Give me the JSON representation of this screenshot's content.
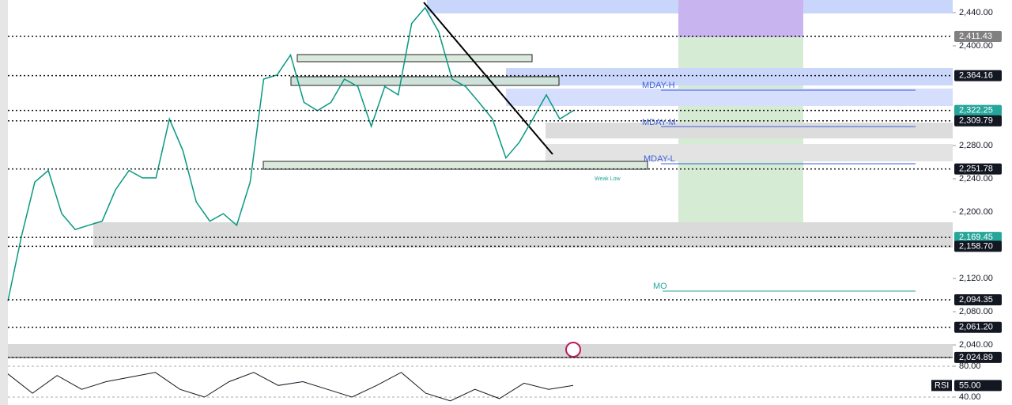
{
  "chart_data": [
    {
      "type": "line",
      "values": [
        2093,
        2170,
        2236,
        2250,
        2198,
        2179,
        2184,
        2189,
        2227,
        2250,
        2241,
        2241,
        2312,
        2274,
        2212,
        2189,
        2198,
        2184,
        2236,
        2360,
        2365,
        2389,
        2332,
        2322,
        2332,
        2360,
        2351,
        2303,
        2351,
        2341,
        2427,
        2446,
        2417,
        2360,
        2351,
        2332,
        2312,
        2265,
        2284,
        2312,
        2341,
        2312,
        2322
      ],
      "color": "#089981",
      "ylim": [
        2024.8,
        2455.2
      ],
      "yticks": [
        {
          "value": 2040,
          "label": "2,040.00"
        },
        {
          "value": 2080,
          "label": "2,080.00"
        },
        {
          "value": 2120,
          "label": "2,120.00"
        },
        {
          "value": 2200,
          "label": "2,200.00"
        },
        {
          "value": 2240,
          "label": "2,240.00"
        },
        {
          "value": 2280,
          "label": "2,280.00"
        },
        {
          "value": 2400,
          "label": "2,400.00"
        },
        {
          "value": 2440,
          "label": "2,440.00"
        }
      ],
      "levels": [
        {
          "value": 2411.43,
          "label": "2,411.43",
          "color": "#808080"
        },
        {
          "value": 2364.16,
          "label": "2,364.16",
          "color": "#131722"
        },
        {
          "value": 2322.25,
          "label": "2,322.25",
          "color": "#26a69a"
        },
        {
          "value": 2309.79,
          "label": "2,309.79",
          "color": "#131722"
        },
        {
          "value": 2251.78,
          "label": "2,251.78",
          "color": "#131722"
        },
        {
          "value": 2169.45,
          "label": "2,169.45",
          "color": "#26a69a"
        },
        {
          "value": 2158.7,
          "label": "2,158.70",
          "color": "#131722"
        },
        {
          "value": 2094.35,
          "label": "2,094.35",
          "color": "#131722"
        },
        {
          "value": 2061.2,
          "label": "2,061.20",
          "color": "#131722"
        },
        {
          "value": 2024.89,
          "label": "2,024.89",
          "color": "#131722"
        }
      ],
      "annotations": [
        "MDAY-H",
        "MDAY-M",
        "MDAY-L",
        "MO",
        "Weak Low"
      ]
    },
    {
      "type": "line",
      "name": "RSI",
      "values": [
        70,
        45,
        68,
        50,
        60,
        66,
        72,
        50,
        40,
        60,
        72,
        55,
        60,
        50,
        40,
        55,
        72,
        45,
        35,
        50,
        38,
        58,
        50,
        55
      ],
      "color": "#131722",
      "ylim": [
        29.7,
        88.2
      ],
      "yticks": [
        {
          "value": 80,
          "label": "80.00"
        },
        {
          "value": 40,
          "label": "40.00"
        }
      ],
      "levels": [
        {
          "value": 55,
          "label": "55.00",
          "color": "#131722"
        }
      ]
    }
  ]
}
